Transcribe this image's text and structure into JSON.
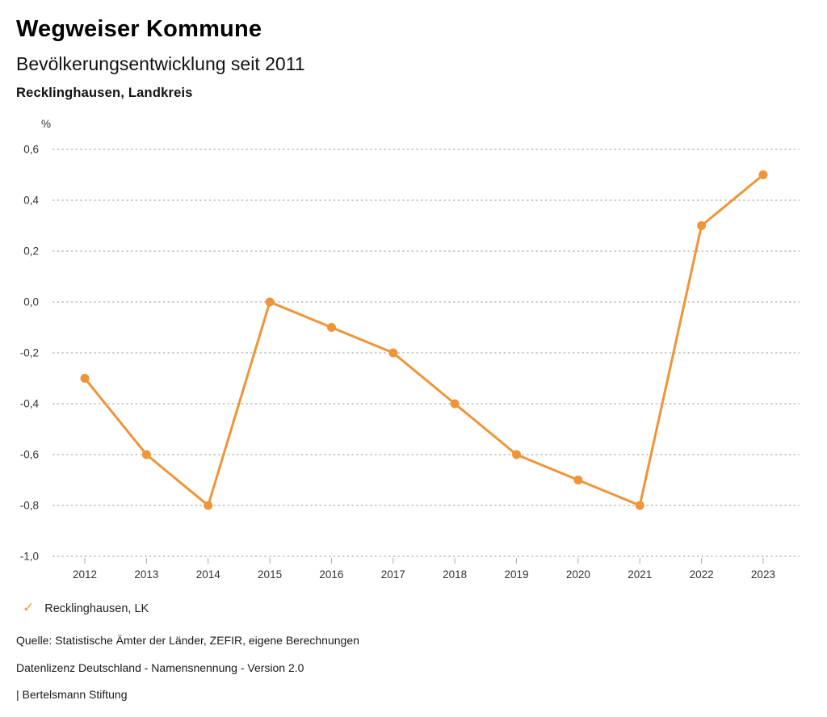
{
  "header": {
    "title": "Wegweiser Kommune",
    "subtitle": "Bevölkerungsentwicklung seit 2011",
    "region": "Recklinghausen, Landkreis"
  },
  "chart_data": {
    "type": "line",
    "title": "Bevölkerungsentwicklung seit 2011",
    "unit_label": "%",
    "xlabel": "",
    "ylabel": "%",
    "categories": [
      "2012",
      "2013",
      "2014",
      "2015",
      "2016",
      "2017",
      "2018",
      "2019",
      "2020",
      "2021",
      "2022",
      "2023"
    ],
    "series": [
      {
        "name": "Recklinghausen, LK",
        "values": [
          -0.3,
          -0.6,
          -0.8,
          0.0,
          -0.1,
          -0.2,
          -0.4,
          -0.6,
          -0.7,
          -0.8,
          0.3,
          0.5
        ]
      }
    ],
    "ylim": [
      -1.0,
      0.6
    ],
    "yticks": [
      {
        "value": 0.6,
        "label": "0,6"
      },
      {
        "value": 0.4,
        "label": "0,4"
      },
      {
        "value": 0.2,
        "label": "0,2"
      },
      {
        "value": 0.0,
        "label": "0,0"
      },
      {
        "value": -0.2,
        "label": "-0,2"
      },
      {
        "value": -0.4,
        "label": "-0,4"
      },
      {
        "value": -0.6,
        "label": "-0,6"
      },
      {
        "value": -0.8,
        "label": "-0,8"
      },
      {
        "value": -1.0,
        "label": "-1,0"
      }
    ],
    "grid": "horizontal-dotted",
    "legend_position": "bottom-left"
  },
  "legend": {
    "check_icon": "✓",
    "label": "Recklinghausen, LK"
  },
  "footer": {
    "source": "Quelle: Statistische Ämter der Länder, ZEFIR, eigene Berechnungen",
    "license": "Datenlizenz Deutschland - Namensnennung - Version 2.0",
    "attribution": "| Bertelsmann Stiftung"
  },
  "colors": {
    "accent": "#EF9439",
    "grid": "#bdbdbd",
    "tick": "#aaaaaa",
    "axis_text": "#333333"
  }
}
